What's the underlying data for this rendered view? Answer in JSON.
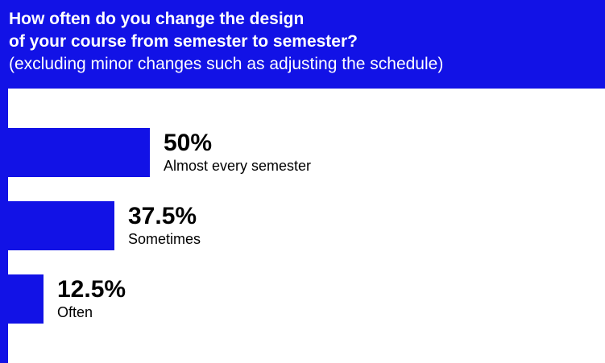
{
  "colors": {
    "accent": "#1212e6",
    "text": "#000000",
    "background": "#ffffff"
  },
  "chart_data": {
    "type": "bar",
    "orientation": "horizontal",
    "title_line1": "How often do you change the design",
    "title_line2": "of your course from semester to semester?",
    "subtitle": "(excluding minor changes such as adjusting the schedule)",
    "categories": [
      "Almost every semester",
      "Sometimes",
      "Often"
    ],
    "values": [
      50,
      37.5,
      12.5
    ],
    "value_labels": [
      "50%",
      "37.5%",
      "12.5%"
    ],
    "unit": "%",
    "xlim": [
      0,
      100
    ],
    "grid": false,
    "legend": "none"
  }
}
